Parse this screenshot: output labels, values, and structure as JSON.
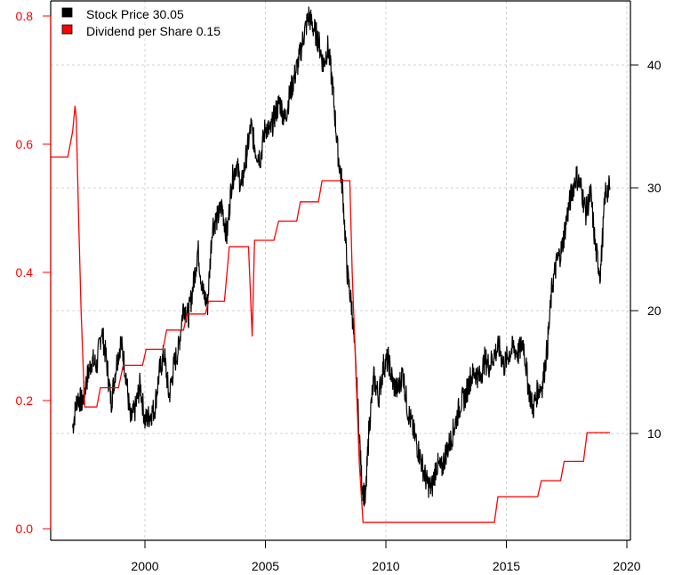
{
  "chart_data": {
    "type": "line",
    "title": "",
    "xlabel": "",
    "ylabel_left": "",
    "ylabel_right": "",
    "x_ticks": [
      "2000",
      "2005",
      "2010",
      "2015",
      "2020"
    ],
    "x_tick_values": [
      2000,
      2005,
      2010,
      2015,
      2020
    ],
    "xlim": [
      1996.1,
      2020.15
    ],
    "left_axis": {
      "ticks": [
        "0.0",
        "0.2",
        "0.4",
        "0.6",
        "0.8"
      ],
      "tick_values": [
        0.0,
        0.2,
        0.4,
        0.6,
        0.8
      ],
      "ylim": [
        0.0,
        0.82
      ],
      "color": "#ff0000",
      "series": "Dividend per Share"
    },
    "right_axis": {
      "ticks": [
        "10",
        "20",
        "30",
        "40"
      ],
      "tick_values": [
        10,
        20,
        30,
        40
      ],
      "ylim": [
        1.8,
        45.2
      ],
      "color": "#000000",
      "series": "Stock Price"
    },
    "grid": true,
    "legend_position": "top-left",
    "series": [
      {
        "name": "Stock Price",
        "axis": "right",
        "color": "#000000",
        "legend_value": "30.05",
        "x": [
          1997.0,
          1997.2,
          1997.4,
          1997.6,
          1997.8,
          1998.0,
          1998.2,
          1998.4,
          1998.6,
          1998.8,
          1999.0,
          1999.2,
          1999.4,
          1999.6,
          1999.8,
          2000.0,
          2000.2,
          2000.4,
          2000.6,
          2000.8,
          2001.0,
          2001.2,
          2001.4,
          2001.6,
          2001.8,
          2002.0,
          2002.2,
          2002.4,
          2002.6,
          2002.8,
          2003.0,
          2003.2,
          2003.4,
          2003.6,
          2003.8,
          2004.0,
          2004.2,
          2004.4,
          2004.6,
          2004.8,
          2005.0,
          2005.2,
          2005.4,
          2005.6,
          2005.8,
          2006.0,
          2006.2,
          2006.4,
          2006.6,
          2006.8,
          2007.0,
          2007.2,
          2007.4,
          2007.6,
          2007.8,
          2008.0,
          2008.2,
          2008.4,
          2008.6,
          2008.8,
          2009.0,
          2009.15,
          2009.3,
          2009.5,
          2009.7,
          2009.9,
          2010.1,
          2010.3,
          2010.5,
          2010.7,
          2010.9,
          2011.1,
          2011.3,
          2011.5,
          2011.7,
          2011.9,
          2012.1,
          2012.3,
          2012.5,
          2012.7,
          2012.9,
          2013.1,
          2013.3,
          2013.5,
          2013.7,
          2013.9,
          2014.1,
          2014.3,
          2014.5,
          2014.7,
          2014.9,
          2015.1,
          2015.3,
          2015.5,
          2015.7,
          2015.9,
          2016.1,
          2016.3,
          2016.5,
          2016.7,
          2016.9,
          2017.1,
          2017.3,
          2017.5,
          2017.7,
          2017.9,
          2018.1,
          2018.3,
          2018.5,
          2018.7,
          2018.9,
          2019.1,
          2019.3
        ],
        "values": [
          10.5,
          13.0,
          12.5,
          14.5,
          16.0,
          15.5,
          18.5,
          16.0,
          12.5,
          15.5,
          17.5,
          15.0,
          11.0,
          12.0,
          14.0,
          11.0,
          11.5,
          12.0,
          15.0,
          16.5,
          13.0,
          15.5,
          17.0,
          20.5,
          19.5,
          22.0,
          25.0,
          21.5,
          20.5,
          27.0,
          27.5,
          28.5,
          26.0,
          30.5,
          32.0,
          30.0,
          32.5,
          35.0,
          33.0,
          32.5,
          35.0,
          34.5,
          36.0,
          37.0,
          35.5,
          37.5,
          39.0,
          40.5,
          42.5,
          44.0,
          43.0,
          42.0,
          40.0,
          41.5,
          38.0,
          33.0,
          30.0,
          23.0,
          20.0,
          13.5,
          6.0,
          4.5,
          10.5,
          14.5,
          13.0,
          15.5,
          16.0,
          14.0,
          13.5,
          15.0,
          12.0,
          10.5,
          9.0,
          7.5,
          6.0,
          5.5,
          7.5,
          7.0,
          8.5,
          9.5,
          11.0,
          12.5,
          13.0,
          14.5,
          15.0,
          14.5,
          16.0,
          15.5,
          16.5,
          17.0,
          15.5,
          16.5,
          17.0,
          16.5,
          17.5,
          14.0,
          12.0,
          13.5,
          14.0,
          17.0,
          22.0,
          24.0,
          25.0,
          27.5,
          29.5,
          31.0,
          30.0,
          28.0,
          29.5,
          25.0,
          23.0,
          29.5,
          30.05
        ]
      },
      {
        "name": "Dividend per Share",
        "axis": "left",
        "color": "#ff0000",
        "legend_value": "0.15",
        "steps": [
          [
            1996.1,
            0.58
          ],
          [
            1996.8,
            0.58
          ],
          [
            1996.9,
            0.6
          ],
          [
            1997.0,
            0.62
          ],
          [
            1997.1,
            0.66
          ],
          [
            1997.15,
            0.64
          ],
          [
            1997.25,
            0.48
          ],
          [
            1997.35,
            0.34
          ],
          [
            1997.45,
            0.24
          ],
          [
            1997.5,
            0.19
          ],
          [
            1998.0,
            0.19
          ],
          [
            1998.15,
            0.22
          ],
          [
            1998.9,
            0.22
          ],
          [
            1999.1,
            0.255
          ],
          [
            1999.9,
            0.255
          ],
          [
            2000.05,
            0.28
          ],
          [
            2000.75,
            0.28
          ],
          [
            2000.9,
            0.31
          ],
          [
            2001.6,
            0.31
          ],
          [
            2001.75,
            0.335
          ],
          [
            2002.5,
            0.335
          ],
          [
            2002.65,
            0.355
          ],
          [
            2003.3,
            0.355
          ],
          [
            2003.5,
            0.44
          ],
          [
            2003.55,
            0.44
          ],
          [
            2004.3,
            0.44
          ],
          [
            2004.45,
            0.3
          ],
          [
            2004.55,
            0.45
          ],
          [
            2005.35,
            0.45
          ],
          [
            2005.55,
            0.48
          ],
          [
            2006.3,
            0.48
          ],
          [
            2006.45,
            0.51
          ],
          [
            2007.2,
            0.51
          ],
          [
            2007.35,
            0.543
          ],
          [
            2008.5,
            0.543
          ],
          [
            2008.6,
            0.4
          ],
          [
            2008.75,
            0.25
          ],
          [
            2008.9,
            0.1
          ],
          [
            2009.0,
            0.04
          ],
          [
            2009.05,
            0.01
          ],
          [
            2014.5,
            0.01
          ],
          [
            2014.65,
            0.05
          ],
          [
            2016.3,
            0.05
          ],
          [
            2016.45,
            0.075
          ],
          [
            2017.25,
            0.075
          ],
          [
            2017.4,
            0.105
          ],
          [
            2018.2,
            0.105
          ],
          [
            2018.35,
            0.15
          ],
          [
            2019.3,
            0.15
          ]
        ]
      }
    ]
  },
  "legend": {
    "items": [
      {
        "label": "Stock Price 30.05",
        "color": "#000000"
      },
      {
        "label": "Dividend per Share  0.15",
        "color": "#ff0000"
      }
    ]
  },
  "axes": {
    "x_ticks": [
      "2000",
      "2005",
      "2010",
      "2015",
      "2020"
    ],
    "left_ticks": [
      "0.0",
      "0.2",
      "0.4",
      "0.6",
      "0.8"
    ],
    "right_ticks": [
      "10",
      "20",
      "30",
      "40"
    ]
  },
  "colors": {
    "dividend": "#ff0000",
    "price": "#000000",
    "grid": "#d3d3d3",
    "frame": "#000000"
  }
}
